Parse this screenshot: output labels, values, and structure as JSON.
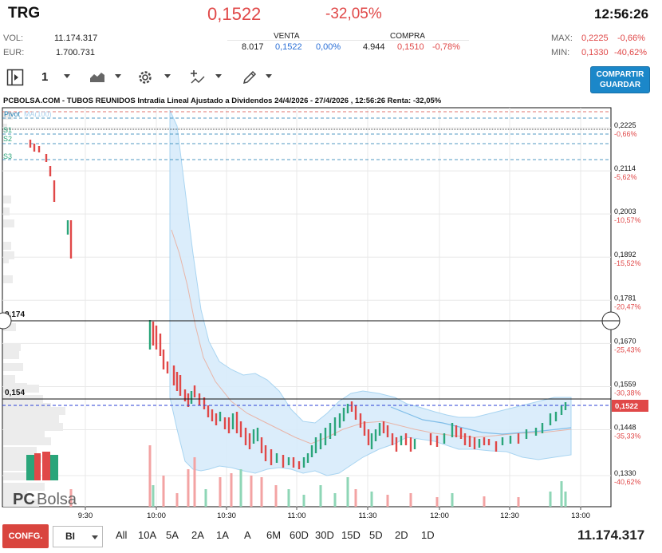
{
  "header": {
    "ticker": "TRG",
    "price": "0,1522",
    "change": "-32,05%",
    "time": "12:56:26",
    "vol_label": "VOL:",
    "vol_value": "11.174.317",
    "eur_label": "EUR:",
    "eur_value": "1.700.731",
    "max_label": "MAX:",
    "max_value": "0,2225",
    "max_pct": "-0,66%",
    "min_label": "MIN:",
    "min_value": "0,1330",
    "min_pct": "-40,62%",
    "venta_label": "VENTA",
    "venta_qty": "8.017",
    "venta_price": "0,1522",
    "venta_pct": "0,00%",
    "compra_label": "COMPRA",
    "compra_qty": "4.944",
    "compra_price": "0,1510",
    "compra_pct": "-0,78%"
  },
  "toolbar": {
    "interval_value": "1",
    "share_line1": "COMPARTIR",
    "share_line2": "GUARDAR"
  },
  "chart_title": "PCBOLSA.COM - TUBOS REUNIDOS Intradia Lineal Ajustado a Dividendos 24/4/2026 - 27/4/2026 , 12:56:26 Renta: -32,05%",
  "legend": {
    "pivot": "Pivot",
    "ma": "MA(100)",
    "s1": "S1",
    "s2": "S2",
    "s3": "S3"
  },
  "watermark": {
    "pc": "PC",
    "bolsa": "Bolsa"
  },
  "price_line_label": "0,1522",
  "hlines": [
    {
      "label": "0,174"
    },
    {
      "label": "0,154"
    }
  ],
  "bottom": {
    "config": "CONFG.",
    "bi": "BI",
    "periods": [
      "All",
      "10A",
      "5A",
      "2A",
      "1A",
      "A",
      "6M",
      "60D",
      "30D",
      "15D",
      "5D",
      "2D",
      "1D"
    ],
    "volume_total": "11.174.317"
  },
  "chart_data": {
    "type": "line",
    "y_ticks": [
      {
        "value": "0,2225",
        "pct": "-0,66%"
      },
      {
        "value": "0,2114",
        "pct": "-5,62%"
      },
      {
        "value": "0,2003",
        "pct": "-10,57%"
      },
      {
        "value": "0,1892",
        "pct": "-15,52%"
      },
      {
        "value": "0,1781",
        "pct": "-20,47%"
      },
      {
        "value": "0,1670",
        "pct": "-25,43%"
      },
      {
        "value": "0,1559",
        "pct": "-30,38%"
      },
      {
        "value": "0,1448",
        "pct": "-35,33%"
      },
      {
        "value": "0,1330",
        "pct": "-40,62%"
      }
    ],
    "x_ticks": [
      "9:30",
      "10:00",
      "10:30",
      "11:00",
      "11:30",
      "12:00",
      "12:30",
      "13:00"
    ],
    "ylim": [
      0.133,
      0.2225
    ],
    "price_series": [
      [
        "9:15",
        0.219
      ],
      [
        "9:17",
        0.2175
      ],
      [
        "9:20",
        0.216
      ],
      [
        "9:22",
        0.212
      ],
      [
        "9:25",
        0.208
      ],
      [
        "9:28",
        0.199
      ],
      [
        "9:30",
        0.196
      ],
      [
        "9:31",
        0.193
      ],
      [
        "10:00",
        0.17
      ],
      [
        "10:02",
        0.168
      ],
      [
        "10:05",
        0.165
      ],
      [
        "10:08",
        0.162
      ],
      [
        "10:10",
        0.16
      ],
      [
        "10:13",
        0.1585
      ],
      [
        "10:16",
        0.156
      ],
      [
        "10:20",
        0.1545
      ],
      [
        "10:25",
        0.153
      ],
      [
        "10:30",
        0.151
      ],
      [
        "10:35",
        0.149
      ],
      [
        "10:40",
        0.147
      ],
      [
        "10:45",
        0.144
      ],
      [
        "10:50",
        0.142
      ],
      [
        "10:55",
        0.14
      ],
      [
        "11:00",
        0.138
      ],
      [
        "11:05",
        0.1395
      ],
      [
        "11:10",
        0.142
      ],
      [
        "11:15",
        0.146
      ],
      [
        "11:20",
        0.15
      ],
      [
        "11:25",
        0.153
      ],
      [
        "11:30",
        0.152
      ],
      [
        "11:35",
        0.15
      ],
      [
        "11:40",
        0.148
      ],
      [
        "11:45",
        0.147
      ],
      [
        "11:50",
        0.146
      ],
      [
        "12:00",
        0.145
      ],
      [
        "12:10",
        0.1455
      ],
      [
        "12:20",
        0.144
      ],
      [
        "12:25",
        0.1445
      ],
      [
        "12:30",
        0.1455
      ],
      [
        "12:35",
        0.146
      ],
      [
        "12:40",
        0.147
      ],
      [
        "12:45",
        0.149
      ],
      [
        "12:50",
        0.151
      ],
      [
        "12:56",
        0.1522
      ]
    ],
    "volume_ticks": [
      [
        "10:00",
        0.45
      ],
      [
        "10:15",
        0.25
      ],
      [
        "10:30",
        0.35
      ],
      [
        "10:40",
        0.55
      ],
      [
        "11:00",
        0.3
      ],
      [
        "11:30",
        0.2
      ],
      [
        "12:00",
        0.15
      ],
      [
        "12:45",
        0.25
      ]
    ],
    "hlines": [
      0.174,
      0.154
    ],
    "price_line": 0.1522,
    "pivot_levels": [
      0.224,
      0.2232,
      0.22,
      0.219,
      0.217
    ],
    "colors": {
      "up": "#2aa57a",
      "down": "#e04848",
      "band_fill": "#d8ecfb",
      "band_stroke": "#9fd0f0",
      "ma": "#e8b5a8",
      "price_line": "#2a3fd6",
      "accent": "#1b87c9",
      "grid": "#e8e8e8"
    }
  }
}
